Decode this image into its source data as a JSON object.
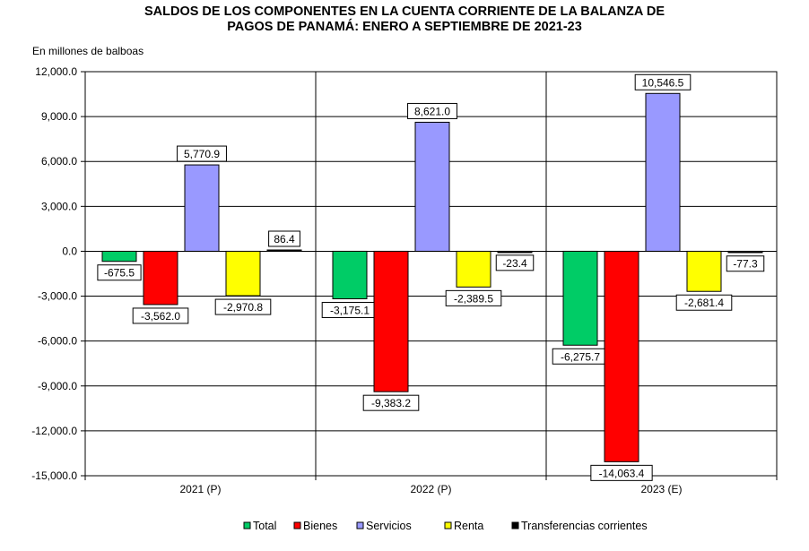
{
  "chart_data": {
    "type": "bar",
    "title_lines": [
      "SALDOS DE LOS COMPONENTES EN LA CUENTA CORRIENTE DE LA BALANZA  DE",
      "PAGOS DE PANAMÁ:  ENERO A SEPTIEMBRE DE 2021-23"
    ],
    "ylabel": "En millones de balboas",
    "xlabel": "",
    "ylim": [
      -15000,
      12000
    ],
    "yticks": [
      12000,
      9000,
      6000,
      3000,
      0,
      -3000,
      -6000,
      -9000,
      -12000,
      -15000
    ],
    "ytick_labels": [
      "12,000.0",
      "9,000.0",
      "6,000.0",
      "3,000.0",
      "0.0",
      "-3,000.0",
      "-6,000.0",
      "-9,000.0",
      "-12,000.0",
      "-15,000.0"
    ],
    "grid": true,
    "legend_position": "bottom",
    "categories": [
      "2021 (P)",
      "2022 (P)",
      "2023 (E)"
    ],
    "series": [
      {
        "name": "Total",
        "color": "#00CC66",
        "values": [
          -675.5,
          -3175.1,
          -6275.7
        ],
        "labels": [
          "-675.5",
          "-3,175.1",
          "-6,275.7"
        ]
      },
      {
        "name": "Bienes",
        "color": "#FF0000",
        "values": [
          -3562.0,
          -9383.2,
          -14063.4
        ],
        "labels": [
          "-3,562.0",
          "-9,383.2",
          "-14,063.4"
        ]
      },
      {
        "name": "Servicios",
        "color": "#9999FF",
        "values": [
          5770.9,
          8621.0,
          10546.5
        ],
        "labels": [
          "5,770.9",
          "8,621.0",
          "10,546.5"
        ]
      },
      {
        "name": "Renta",
        "color": "#FFFF00",
        "values": [
          -2970.8,
          -2389.5,
          -2681.4
        ],
        "labels": [
          "-2,970.8",
          "-2,389.5",
          "-2,681.4"
        ]
      },
      {
        "name": "Transferencias corrientes",
        "color": "#000000",
        "values": [
          86.4,
          -23.4,
          -77.3
        ],
        "labels": [
          "86.4",
          "-23.4",
          "-77.3"
        ]
      }
    ]
  }
}
